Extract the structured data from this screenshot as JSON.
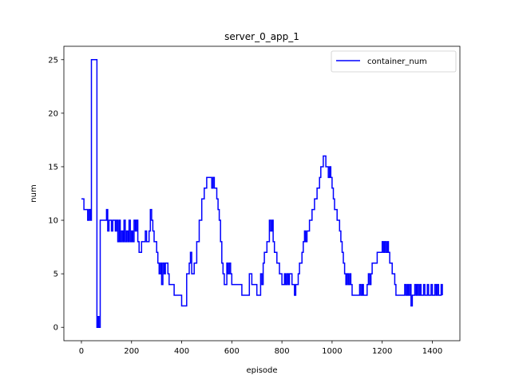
{
  "chart_data": {
    "type": "line",
    "title": "server_0_app_1",
    "xlabel": "episode",
    "ylabel": "num",
    "xlim": [
      -70,
      1510
    ],
    "ylim": [
      -1.25,
      26.25
    ],
    "xticks": [
      0,
      200,
      400,
      600,
      800,
      1000,
      1200,
      1400
    ],
    "yticks": [
      0,
      5,
      10,
      15,
      20,
      25
    ],
    "grid": false,
    "legend": "top-right",
    "series": [
      {
        "name": "container_num",
        "color": "#0000ff",
        "step": true,
        "points": [
          [
            0,
            12
          ],
          [
            10,
            11
          ],
          [
            20,
            11
          ],
          [
            25,
            10
          ],
          [
            30,
            11
          ],
          [
            35,
            10
          ],
          [
            40,
            25
          ],
          [
            62,
            0
          ],
          [
            65,
            1
          ],
          [
            70,
            0
          ],
          [
            75,
            10
          ],
          [
            100,
            11
          ],
          [
            105,
            9
          ],
          [
            110,
            10
          ],
          [
            120,
            9
          ],
          [
            125,
            10
          ],
          [
            135,
            9
          ],
          [
            140,
            10
          ],
          [
            145,
            8
          ],
          [
            150,
            10
          ],
          [
            155,
            8
          ],
          [
            160,
            9
          ],
          [
            165,
            8
          ],
          [
            170,
            10
          ],
          [
            175,
            8
          ],
          [
            180,
            9
          ],
          [
            185,
            8
          ],
          [
            190,
            10
          ],
          [
            195,
            8
          ],
          [
            200,
            9
          ],
          [
            205,
            8
          ],
          [
            210,
            10
          ],
          [
            215,
            9
          ],
          [
            220,
            10
          ],
          [
            225,
            8
          ],
          [
            230,
            7
          ],
          [
            240,
            8
          ],
          [
            255,
            9
          ],
          [
            260,
            8
          ],
          [
            270,
            9
          ],
          [
            275,
            11
          ],
          [
            280,
            10
          ],
          [
            285,
            9
          ],
          [
            290,
            8
          ],
          [
            300,
            7
          ],
          [
            305,
            6
          ],
          [
            310,
            5
          ],
          [
            315,
            6
          ],
          [
            320,
            4
          ],
          [
            325,
            6
          ],
          [
            330,
            5
          ],
          [
            335,
            6
          ],
          [
            345,
            5
          ],
          [
            350,
            4
          ],
          [
            370,
            3
          ],
          [
            385,
            3
          ],
          [
            400,
            2
          ],
          [
            420,
            5
          ],
          [
            430,
            6
          ],
          [
            435,
            7
          ],
          [
            440,
            5
          ],
          [
            450,
            6
          ],
          [
            460,
            8
          ],
          [
            470,
            10
          ],
          [
            480,
            12
          ],
          [
            490,
            13
          ],
          [
            500,
            14
          ],
          [
            520,
            13
          ],
          [
            525,
            14
          ],
          [
            530,
            13
          ],
          [
            540,
            12
          ],
          [
            545,
            11
          ],
          [
            550,
            10
          ],
          [
            555,
            8
          ],
          [
            560,
            6
          ],
          [
            565,
            5
          ],
          [
            570,
            4
          ],
          [
            580,
            6
          ],
          [
            585,
            5
          ],
          [
            590,
            6
          ],
          [
            595,
            5
          ],
          [
            600,
            4
          ],
          [
            620,
            4
          ],
          [
            640,
            3
          ],
          [
            660,
            3
          ],
          [
            670,
            5
          ],
          [
            680,
            4
          ],
          [
            690,
            4
          ],
          [
            700,
            3
          ],
          [
            715,
            5
          ],
          [
            720,
            4
          ],
          [
            725,
            6
          ],
          [
            730,
            7
          ],
          [
            740,
            8
          ],
          [
            750,
            10
          ],
          [
            755,
            9
          ],
          [
            760,
            10
          ],
          [
            765,
            8
          ],
          [
            770,
            7
          ],
          [
            780,
            6
          ],
          [
            790,
            5
          ],
          [
            800,
            4
          ],
          [
            810,
            5
          ],
          [
            815,
            4
          ],
          [
            820,
            5
          ],
          [
            825,
            4
          ],
          [
            830,
            5
          ],
          [
            840,
            4
          ],
          [
            850,
            3
          ],
          [
            855,
            4
          ],
          [
            865,
            5
          ],
          [
            870,
            6
          ],
          [
            880,
            7
          ],
          [
            885,
            8
          ],
          [
            890,
            9
          ],
          [
            895,
            8
          ],
          [
            900,
            9
          ],
          [
            910,
            10
          ],
          [
            920,
            11
          ],
          [
            930,
            12
          ],
          [
            940,
            13
          ],
          [
            950,
            14
          ],
          [
            955,
            15
          ],
          [
            965,
            16
          ],
          [
            975,
            15
          ],
          [
            985,
            14
          ],
          [
            990,
            15
          ],
          [
            995,
            14
          ],
          [
            1000,
            13
          ],
          [
            1005,
            12
          ],
          [
            1010,
            11
          ],
          [
            1020,
            10
          ],
          [
            1030,
            9
          ],
          [
            1035,
            8
          ],
          [
            1040,
            7
          ],
          [
            1045,
            6
          ],
          [
            1050,
            5
          ],
          [
            1055,
            4
          ],
          [
            1060,
            5
          ],
          [
            1065,
            4
          ],
          [
            1070,
            5
          ],
          [
            1075,
            4
          ],
          [
            1080,
            3
          ],
          [
            1100,
            3
          ],
          [
            1110,
            4
          ],
          [
            1115,
            3
          ],
          [
            1120,
            4
          ],
          [
            1125,
            3
          ],
          [
            1140,
            4
          ],
          [
            1145,
            5
          ],
          [
            1150,
            4
          ],
          [
            1155,
            5
          ],
          [
            1160,
            6
          ],
          [
            1170,
            6
          ],
          [
            1180,
            7
          ],
          [
            1200,
            8
          ],
          [
            1205,
            7
          ],
          [
            1210,
            8
          ],
          [
            1215,
            7
          ],
          [
            1220,
            8
          ],
          [
            1225,
            7
          ],
          [
            1230,
            6
          ],
          [
            1240,
            5
          ],
          [
            1250,
            4
          ],
          [
            1255,
            3
          ],
          [
            1280,
            3
          ],
          [
            1290,
            4
          ],
          [
            1295,
            3
          ],
          [
            1300,
            4
          ],
          [
            1305,
            3
          ],
          [
            1310,
            4
          ],
          [
            1315,
            2
          ],
          [
            1320,
            3
          ],
          [
            1330,
            4
          ],
          [
            1335,
            3
          ],
          [
            1340,
            4
          ],
          [
            1345,
            3
          ],
          [
            1350,
            4
          ],
          [
            1355,
            3
          ],
          [
            1365,
            4
          ],
          [
            1370,
            3
          ],
          [
            1380,
            4
          ],
          [
            1385,
            3
          ],
          [
            1395,
            4
          ],
          [
            1400,
            3
          ],
          [
            1410,
            4
          ],
          [
            1415,
            3
          ],
          [
            1420,
            4
          ],
          [
            1425,
            3
          ],
          [
            1435,
            4
          ],
          [
            1440,
            3
          ]
        ]
      }
    ]
  }
}
